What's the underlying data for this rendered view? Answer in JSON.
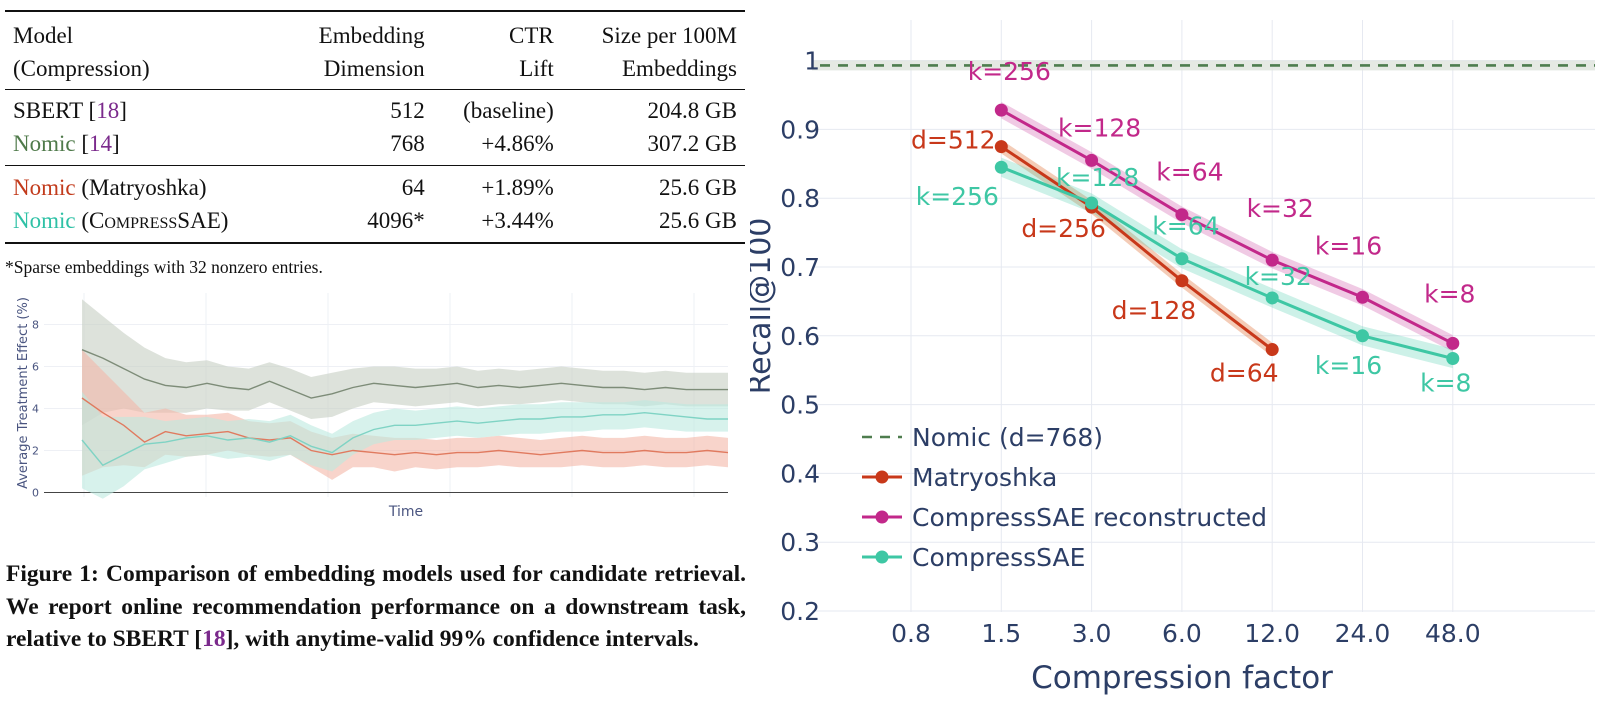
{
  "table": {
    "header": {
      "model": [
        "Model",
        "(Compression)"
      ],
      "dim": [
        "Embedding",
        "Dimension"
      ],
      "ctr": [
        "CTR",
        "Lift"
      ],
      "size": [
        "Size per 100M",
        "Embeddings"
      ]
    },
    "rows": [
      {
        "name": "SBERT",
        "variant": "",
        "cite": "18",
        "dim": "512",
        "ctr": "(baseline)",
        "size": "204.8 GB"
      },
      {
        "name": "Nomic",
        "variant": "",
        "cite": "14",
        "dim": "768",
        "ctr": "+4.86%",
        "size": "307.2 GB"
      },
      {
        "name": "Nomic",
        "variant": "(Matryoshka)",
        "cite": "",
        "dim": "64",
        "ctr": "+1.89%",
        "size": "25.6 GB"
      },
      {
        "name": "Nomic",
        "variant": "CompressSAE",
        "cite": "",
        "dim": "4096*",
        "ctr": "+3.44%",
        "size": "25.6 GB"
      }
    ],
    "footnote": "*Sparse embeddings with 32 nonzero entries."
  },
  "caption": {
    "before": "Figure 1: Comparison of embedding models used for candidate retrieval. We report online recommendation performance on a downstream task, relative to SBERT [",
    "cite": "18",
    "after": "], with anytime-valid 99% confidence intervals."
  },
  "chart_data": [
    {
      "type": "line",
      "title": "",
      "xlabel": "Time",
      "ylabel": "Average Treatment Effect (%)",
      "ylim": [
        -0.5,
        9.5
      ],
      "yticks": [
        0,
        2,
        4,
        6,
        8
      ],
      "grid": true,
      "series": [
        {
          "name": "Nomic",
          "color": "#7d8c78",
          "fill": "#c7cfc3",
          "values": [
            6.8,
            6.4,
            5.9,
            5.4,
            5.1,
            5.0,
            5.2,
            5.0,
            4.9,
            5.3,
            4.9,
            4.5,
            4.7,
            5.0,
            5.2,
            5.1,
            5.0,
            5.1,
            5.2,
            5.0,
            5.1,
            5.0,
            5.1,
            5.2,
            5.1,
            5.0,
            5.0,
            4.9,
            5.0,
            4.9,
            4.9,
            4.9
          ],
          "upper": [
            9.2,
            8.4,
            7.6,
            6.9,
            6.4,
            6.2,
            6.3,
            6.0,
            5.9,
            6.2,
            5.9,
            5.5,
            5.7,
            5.9,
            6.0,
            6.0,
            5.9,
            5.9,
            6.0,
            5.8,
            5.9,
            5.8,
            5.9,
            6.0,
            5.9,
            5.8,
            5.8,
            5.7,
            5.8,
            5.7,
            5.7,
            5.7
          ],
          "lower": [
            3.2,
            3.8,
            4.0,
            3.8,
            3.8,
            3.8,
            4.0,
            3.9,
            3.9,
            4.3,
            3.9,
            3.5,
            3.6,
            4.0,
            4.3,
            4.2,
            4.1,
            4.2,
            4.3,
            4.1,
            4.2,
            4.2,
            4.3,
            4.4,
            4.3,
            4.2,
            4.2,
            4.1,
            4.2,
            4.1,
            4.1,
            4.1
          ]
        },
        {
          "name": "Nomic (Matryoshka)",
          "color": "#e07a5f",
          "fill": "#f4b7a8",
          "values": [
            4.5,
            3.8,
            3.2,
            2.4,
            2.9,
            2.7,
            2.8,
            2.9,
            2.6,
            2.5,
            2.6,
            2.0,
            1.8,
            2.0,
            1.9,
            1.8,
            1.9,
            1.8,
            1.9,
            1.9,
            2.0,
            1.9,
            1.8,
            1.9,
            2.0,
            1.9,
            1.9,
            2.0,
            1.9,
            1.9,
            2.0,
            1.9
          ],
          "upper": [
            6.8,
            5.8,
            4.8,
            3.8,
            4.0,
            3.7,
            3.7,
            3.8,
            3.4,
            3.3,
            3.4,
            2.9,
            2.6,
            2.8,
            2.7,
            2.6,
            2.6,
            2.5,
            2.6,
            2.6,
            2.7,
            2.6,
            2.5,
            2.6,
            2.7,
            2.6,
            2.6,
            2.7,
            2.6,
            2.6,
            2.7,
            2.6
          ],
          "lower": [
            0.8,
            1.2,
            1.3,
            1.2,
            1.8,
            1.7,
            1.8,
            2.0,
            1.8,
            1.7,
            1.8,
            1.2,
            0.6,
            1.2,
            1.2,
            1.0,
            1.2,
            1.1,
            1.2,
            1.2,
            1.3,
            1.2,
            1.2,
            1.2,
            1.3,
            1.2,
            1.2,
            1.3,
            1.2,
            1.2,
            1.3,
            1.2
          ]
        },
        {
          "name": "Nomic (CompressSAE)",
          "color": "#7fd3c4",
          "fill": "#bde9e0",
          "values": [
            2.5,
            1.3,
            1.8,
            2.3,
            2.4,
            2.6,
            2.7,
            2.5,
            2.6,
            2.4,
            2.7,
            2.2,
            1.9,
            2.6,
            3.0,
            3.2,
            3.2,
            3.3,
            3.4,
            3.3,
            3.4,
            3.5,
            3.5,
            3.6,
            3.6,
            3.7,
            3.7,
            3.8,
            3.7,
            3.6,
            3.5,
            3.5
          ],
          "upper": [
            4.8,
            3.6,
            3.6,
            3.6,
            3.4,
            3.5,
            3.6,
            3.4,
            3.5,
            3.4,
            3.7,
            3.2,
            2.8,
            3.4,
            3.8,
            4.0,
            3.9,
            4.0,
            4.1,
            4.0,
            4.1,
            4.2,
            4.2,
            4.3,
            4.3,
            4.3,
            4.3,
            4.4,
            4.3,
            4.2,
            4.2,
            4.2
          ],
          "lower": [
            0.2,
            -0.3,
            0.3,
            1.1,
            1.4,
            1.7,
            1.8,
            1.6,
            1.7,
            1.5,
            1.8,
            1.3,
            1.0,
            1.8,
            2.3,
            2.5,
            2.5,
            2.6,
            2.7,
            2.6,
            2.7,
            2.8,
            2.8,
            2.9,
            2.9,
            3.0,
            3.0,
            3.1,
            3.0,
            2.9,
            2.9,
            2.9
          ]
        }
      ]
    },
    {
      "type": "line",
      "title": "",
      "xlabel": "Compression factor",
      "ylabel": "Recall@100",
      "xcategories": [
        "0.8",
        "1.5",
        "3.0",
        "6.0",
        "12.0",
        "24.0",
        "48.0"
      ],
      "ylim": [
        0.2,
        1.03
      ],
      "yticks": [
        0.2,
        0.3,
        0.4,
        0.5,
        0.6,
        0.7,
        0.8,
        0.9,
        1
      ],
      "ytick_labels": [
        "0.2",
        "0.3",
        "0.4",
        "0.5",
        "0.6",
        "0.7",
        "0.8",
        "0.9",
        "1"
      ],
      "grid": true,
      "legend": "bottom-left",
      "baseline": {
        "name": "Nomic (d=768)",
        "value": 0.993,
        "color": "#4e7d4e"
      },
      "series": [
        {
          "name": "Matryoshka",
          "color": "#c8381a",
          "band": "rgba(224,110,50,0.35)",
          "band_width": 0.01,
          "points": [
            {
              "x": "1.5",
              "y": 0.875,
              "label": "d=512"
            },
            {
              "x": "3.0",
              "y": 0.787,
              "label": "d=256"
            },
            {
              "x": "6.0",
              "y": 0.68,
              "label": "d=128"
            },
            {
              "x": "12.0",
              "y": 0.58,
              "label": "d=64"
            }
          ]
        },
        {
          "name": "CompressSAE reconstructed",
          "color": "#c2288a",
          "band": "rgba(205,80,165,0.3)",
          "band_width": 0.012,
          "points": [
            {
              "x": "1.5",
              "y": 0.928,
              "label": "k=256"
            },
            {
              "x": "3.0",
              "y": 0.855,
              "label": "k=128"
            },
            {
              "x": "6.0",
              "y": 0.776,
              "label": "k=64"
            },
            {
              "x": "12.0",
              "y": 0.71,
              "label": "k=32"
            },
            {
              "x": "24.0",
              "y": 0.656,
              "label": "k=16"
            },
            {
              "x": "48.0",
              "y": 0.589,
              "label": "k=8"
            }
          ]
        },
        {
          "name": "CompressSAE",
          "color": "#3ec7a4",
          "band": "rgba(90,210,180,0.3)",
          "band_width": 0.014,
          "points": [
            {
              "x": "1.5",
              "y": 0.845,
              "label": "k=256"
            },
            {
              "x": "3.0",
              "y": 0.793,
              "label": "k=128"
            },
            {
              "x": "6.0",
              "y": 0.712,
              "label": "k=64"
            },
            {
              "x": "12.0",
              "y": 0.655,
              "label": "k=32"
            },
            {
              "x": "24.0",
              "y": 0.6,
              "label": "k=16"
            },
            {
              "x": "48.0",
              "y": 0.567,
              "label": "k=8"
            }
          ]
        }
      ]
    }
  ]
}
